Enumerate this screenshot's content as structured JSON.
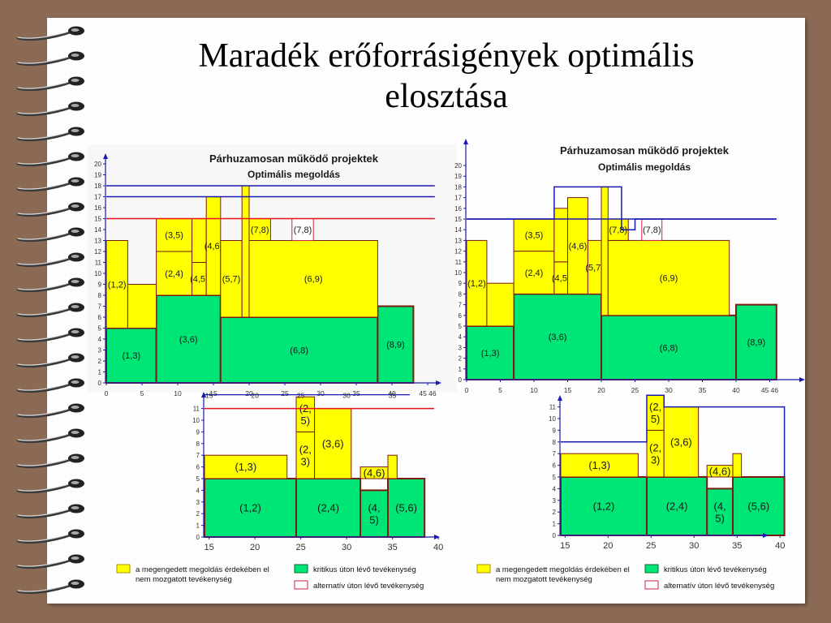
{
  "slide": {
    "title_line1": "Maradék erőforrásigények optimális",
    "title_line2": "elosztása"
  },
  "colors": {
    "allowed_fixed": "#ffff00",
    "critical": "#00e676",
    "alternative": "#ffffff",
    "limit_red": "#e8101a",
    "limit_blue": "#1a1ab0",
    "axis": "#1a1ab0",
    "outline": "#7a1a10"
  },
  "diagrams": [
    {
      "name": "top-left-chart",
      "chart_title": "Párhuzamosan működő projektek",
      "chart_subtitle": "Optimális megoldás",
      "x_ticks": [
        "0",
        "5",
        "10",
        "15",
        "20",
        "25",
        "30",
        "35",
        "40",
        "45 46"
      ],
      "y_ticks": [
        "0",
        "1",
        "2",
        "3",
        "4",
        "5",
        "6",
        "7",
        "8",
        "9",
        "10",
        "11",
        "12",
        "13",
        "14",
        "15",
        "16",
        "17",
        "18",
        "19",
        "20"
      ],
      "limits": [
        {
          "level": 18,
          "x0": 0,
          "x1": 46,
          "color": "blue"
        },
        {
          "level": 17,
          "x0": 0,
          "x1": 46,
          "color": "blue"
        },
        {
          "level": 15,
          "x0": 0,
          "x1": 46,
          "color": "red"
        }
      ],
      "blocks": [
        {
          "label": "(1,3)",
          "x0": 0,
          "x1": 7,
          "y0": 0,
          "y1": 5,
          "kind": "critical"
        },
        {
          "label": "(3,6)",
          "x0": 7,
          "x1": 16,
          "y0": 0,
          "y1": 8,
          "kind": "critical"
        },
        {
          "label": "(6,8)",
          "x0": 16,
          "x1": 38,
          "y0": 0,
          "y1": 6,
          "kind": "critical"
        },
        {
          "label": "(8,9)",
          "x0": 38,
          "x1": 43,
          "y0": 0,
          "y1": 7,
          "kind": "critical"
        },
        {
          "label": "(1,2)",
          "x0": 0,
          "x1": 3,
          "y0": 5,
          "y1": 13,
          "kind": "fixed"
        },
        {
          "label": "",
          "x0": 3,
          "x1": 7,
          "y0": 5,
          "y1": 9,
          "kind": "fixed"
        },
        {
          "label": "(2,4)",
          "x0": 7,
          "x1": 12,
          "y0": 8,
          "y1": 12,
          "kind": "fixed"
        },
        {
          "label": "(3,5)",
          "x0": 7,
          "x1": 12,
          "y0": 12,
          "y1": 15,
          "kind": "fixed"
        },
        {
          "label": "(4,5)",
          "x0": 12,
          "x1": 14,
          "y0": 8,
          "y1": 11,
          "kind": "fixed"
        },
        {
          "label": "",
          "x0": 12,
          "x1": 14,
          "y0": 11,
          "y1": 15,
          "kind": "fixed"
        },
        {
          "label": "(4,6)",
          "x0": 14,
          "x1": 16,
          "y0": 8,
          "y1": 17,
          "kind": "fixed"
        },
        {
          "label": "(5,7)",
          "x0": 16,
          "x1": 19,
          "y0": 6,
          "y1": 13,
          "kind": "fixed"
        },
        {
          "label": "",
          "x0": 19,
          "x1": 20,
          "y0": 6,
          "y1": 18,
          "kind": "fixed"
        },
        {
          "label": "(6,9)",
          "x0": 20,
          "x1": 38,
          "y0": 6,
          "y1": 13,
          "kind": "fixed"
        },
        {
          "label": "(7,8)",
          "x0": 20,
          "x1": 23,
          "y0": 13,
          "y1": 15,
          "kind": "fixed"
        },
        {
          "label": "(7,8)",
          "x0": 26,
          "x1": 29,
          "y0": 13,
          "y1": 15,
          "kind": "alternative"
        }
      ]
    },
    {
      "name": "top-right-chart",
      "chart_title": "Párhuzamosan működő projektek",
      "chart_subtitle": "Optimális megoldás",
      "x_ticks": [
        "0",
        "5",
        "10",
        "15",
        "20",
        "25",
        "30",
        "35",
        "40",
        "45 46"
      ],
      "y_ticks": [
        "0",
        "1",
        "2",
        "3",
        "4",
        "5",
        "6",
        "7",
        "8",
        "9",
        "10",
        "11",
        "12",
        "13",
        "14",
        "15",
        "16",
        "17",
        "18",
        "19",
        "20"
      ],
      "limits": [
        {
          "level": 15,
          "x0": 0,
          "x1": 46,
          "color": "blue"
        }
      ],
      "outline": [
        [
          0,
          15
        ],
        [
          13,
          15
        ],
        [
          13,
          18
        ],
        [
          23,
          18
        ],
        [
          23,
          14
        ],
        [
          25,
          14
        ],
        [
          25,
          15
        ],
        [
          46,
          15
        ]
      ],
      "blocks": [
        {
          "label": "(1,3)",
          "x0": 0,
          "x1": 7,
          "y0": 0,
          "y1": 5,
          "kind": "critical"
        },
        {
          "label": "(3,6)",
          "x0": 7,
          "x1": 20,
          "y0": 0,
          "y1": 8,
          "kind": "critical"
        },
        {
          "label": "(6,8)",
          "x0": 20,
          "x1": 40,
          "y0": 0,
          "y1": 6,
          "kind": "critical"
        },
        {
          "label": "(8,9)",
          "x0": 40,
          "x1": 46,
          "y0": 0,
          "y1": 7,
          "kind": "critical"
        },
        {
          "label": "(1,2)",
          "x0": 0,
          "x1": 3,
          "y0": 5,
          "y1": 13,
          "kind": "fixed"
        },
        {
          "label": "",
          "x0": 3,
          "x1": 7,
          "y0": 5,
          "y1": 9,
          "kind": "fixed"
        },
        {
          "label": "(2,4)",
          "x0": 7,
          "x1": 13,
          "y0": 8,
          "y1": 12,
          "kind": "fixed"
        },
        {
          "label": "(3,5)",
          "x0": 7,
          "x1": 13,
          "y0": 12,
          "y1": 15,
          "kind": "fixed"
        },
        {
          "label": "(4,5)",
          "x0": 13,
          "x1": 15,
          "y0": 8,
          "y1": 11,
          "kind": "fixed"
        },
        {
          "label": "",
          "x0": 13,
          "x1": 15,
          "y0": 11,
          "y1": 16,
          "kind": "fixed"
        },
        {
          "label": "(4,6)",
          "x0": 15,
          "x1": 18,
          "y0": 8,
          "y1": 17,
          "kind": "fixed"
        },
        {
          "label": "(5,7)",
          "x0": 18,
          "x1": 20,
          "y0": 8,
          "y1": 13,
          "kind": "fixed"
        },
        {
          "label": "",
          "x0": 20,
          "x1": 21,
          "y0": 6,
          "y1": 18,
          "kind": "fixed"
        },
        {
          "label": "(6,9)",
          "x0": 21,
          "x1": 39,
          "y0": 6,
          "y1": 13,
          "kind": "fixed"
        },
        {
          "label": "(7,8)",
          "x0": 21,
          "x1": 24,
          "y0": 13,
          "y1": 15,
          "kind": "fixed"
        },
        {
          "label": "(7,8)",
          "x0": 26,
          "x1": 29,
          "y0": 13,
          "y1": 15,
          "kind": "alternative"
        }
      ]
    },
    {
      "name": "bottom-left-chart",
      "x_ticks": [
        "15",
        "20",
        "25",
        "30",
        "35",
        "40"
      ],
      "x_ticks_top": [
        "15",
        "20",
        "25",
        "30",
        "35"
      ],
      "y_ticks": [
        "0",
        "1",
        "2",
        "3",
        "4",
        "5",
        "6",
        "7",
        "8",
        "9",
        "10",
        "11"
      ],
      "limits": [
        {
          "level": 11,
          "x0": 14.5,
          "x1": 41.5,
          "color": "red"
        }
      ],
      "blocks": [
        {
          "label": "(1,2)",
          "x0": 14.5,
          "x1": 24.5,
          "y0": 0,
          "y1": 5,
          "kind": "critical"
        },
        {
          "label": "(2,4)",
          "x0": 24.5,
          "x1": 31.5,
          "y0": 0,
          "y1": 5,
          "kind": "critical"
        },
        {
          "label": "(4,\n5)",
          "x0": 31.5,
          "x1": 34.5,
          "y0": 0,
          "y1": 4,
          "kind": "critical"
        },
        {
          "label": "(5,6)",
          "x0": 34.5,
          "x1": 38.5,
          "y0": 0,
          "y1": 5,
          "kind": "critical"
        },
        {
          "label": "(1,3)",
          "x0": 14.5,
          "x1": 23.5,
          "y0": 5,
          "y1": 7,
          "kind": "fixed"
        },
        {
          "label": "(2,\n3)",
          "x0": 24.5,
          "x1": 26.5,
          "y0": 5,
          "y1": 9,
          "kind": "fixed"
        },
        {
          "label": "(2,\n5)",
          "x0": 24.5,
          "x1": 26.5,
          "y0": 9,
          "y1": 12,
          "kind": "fixed"
        },
        {
          "label": "(3,6)",
          "x0": 26.5,
          "x1": 30.5,
          "y0": 5,
          "y1": 11,
          "kind": "fixed"
        },
        {
          "label": "(4,6)",
          "x0": 31.5,
          "x1": 34.5,
          "y0": 5,
          "y1": 6,
          "kind": "fixed"
        },
        {
          "label": "",
          "x0": 34.5,
          "x1": 35.5,
          "y0": 5,
          "y1": 7,
          "kind": "fixed"
        }
      ]
    },
    {
      "name": "bottom-right-chart",
      "x_ticks": [
        "15",
        "20",
        "25",
        "30",
        "35",
        "40"
      ],
      "y_ticks": [
        "0",
        "1",
        "2",
        "3",
        "4",
        "5",
        "6",
        "7",
        "8",
        "9",
        "10",
        "11"
      ],
      "limits": [],
      "outline": [
        [
          14.5,
          8
        ],
        [
          24.5,
          8
        ],
        [
          24.5,
          12
        ],
        [
          26.5,
          12
        ],
        [
          26.5,
          11
        ],
        [
          40.5,
          11
        ],
        [
          40.5,
          5
        ]
      ],
      "blocks": [
        {
          "label": "(1,2)",
          "x0": 14.5,
          "x1": 24.5,
          "y0": 0,
          "y1": 5,
          "kind": "critical"
        },
        {
          "label": "(2,4)",
          "x0": 24.5,
          "x1": 31.5,
          "y0": 0,
          "y1": 5,
          "kind": "critical"
        },
        {
          "label": "(4,\n5)",
          "x0": 31.5,
          "x1": 34.5,
          "y0": 0,
          "y1": 4,
          "kind": "critical"
        },
        {
          "label": "(5,6)",
          "x0": 34.5,
          "x1": 40.5,
          "y0": 0,
          "y1": 5,
          "kind": "critical"
        },
        {
          "label": "(1,3)",
          "x0": 14.5,
          "x1": 23.5,
          "y0": 5,
          "y1": 7,
          "kind": "fixed"
        },
        {
          "label": "(2,\n3)",
          "x0": 24.5,
          "x1": 26.5,
          "y0": 5,
          "y1": 9,
          "kind": "fixed"
        },
        {
          "label": "(2,\n5)",
          "x0": 24.5,
          "x1": 26.5,
          "y0": 9,
          "y1": 12,
          "kind": "fixed"
        },
        {
          "label": "(3,6)",
          "x0": 26.5,
          "x1": 30.5,
          "y0": 5,
          "y1": 11,
          "kind": "fixed"
        },
        {
          "label": "(4,6)",
          "x0": 31.5,
          "x1": 34.5,
          "y0": 5,
          "y1": 6,
          "kind": "fixed"
        },
        {
          "label": "",
          "x0": 34.5,
          "x1": 35.5,
          "y0": 5,
          "y1": 7,
          "kind": "fixed"
        }
      ]
    }
  ],
  "legend": {
    "fixed_line1": "a megengedett megoldás érdekében el",
    "fixed_line2": "nem mozgatott tevékenység",
    "critical": "kritikus úton lévő tevékenység",
    "alternative": "alternatív úton lévő tevékenység"
  }
}
